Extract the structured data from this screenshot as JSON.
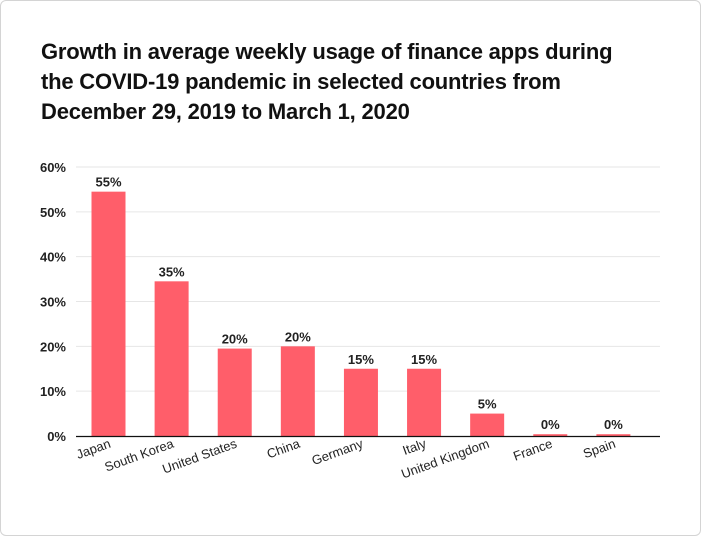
{
  "chart_data": {
    "type": "bar",
    "title_lines": [
      "Growth in average weekly usage of finance apps during",
      "the COVID-19 pandemic in selected countries from",
      "December 29, 2019 to March 1, 2020"
    ],
    "categories": [
      "Japan",
      "South Korea",
      "United States",
      "China",
      "Germany",
      "Italy",
      "United Kingdom",
      "France",
      "Spain"
    ],
    "values": [
      55,
      35,
      20,
      20,
      15,
      15,
      5,
      0,
      0
    ],
    "bar_heights": [
      54.5,
      34.5,
      19.5,
      20,
      15,
      15,
      5,
      0.4,
      0.4
    ],
    "data_labels": [
      "55%",
      "35%",
      "20%",
      "20%",
      "15%",
      "15%",
      "5%",
      "0%",
      "0%"
    ],
    "yticks": [
      "0%",
      "10%",
      "20%",
      "30%",
      "40%",
      "50%",
      "60%"
    ],
    "ylim": [
      0,
      60
    ],
    "xlabel": "",
    "ylabel": "",
    "grid": true,
    "bar_color": "#ff5e6a",
    "grid_color": "#e6e6e6",
    "axis_color": "#111111"
  }
}
